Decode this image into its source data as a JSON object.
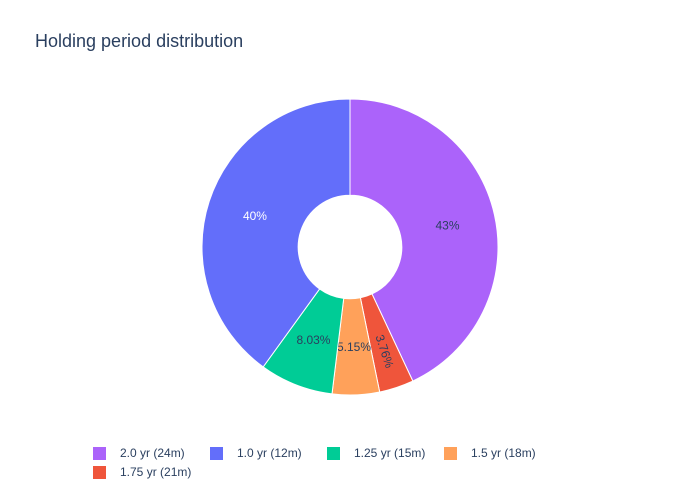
{
  "chart_data": {
    "type": "pie",
    "title": "Holding period distribution",
    "hole": 0.35,
    "legend_position": "bottom",
    "slices": [
      {
        "label": "2.0 yr (24m)",
        "value": 43.0,
        "text": "43%",
        "color": "#ab63fa"
      },
      {
        "label": "1.75 yr (21m)",
        "value": 3.76,
        "text": "3.76%",
        "color": "#ef553b"
      },
      {
        "label": "1.5 yr (18m)",
        "value": 5.15,
        "text": "5.15%",
        "color": "#ffa15a"
      },
      {
        "label": "1.25 yr (15m)",
        "value": 8.03,
        "text": "8.03%",
        "color": "#00cc96"
      },
      {
        "label": "1.0 yr (12m)",
        "value": 40.0,
        "text": "40%",
        "color": "#636efa"
      }
    ],
    "legend_order": [
      "2.0 yr (24m)",
      "1.0 yr (12m)",
      "1.25 yr (15m)",
      "1.5 yr (18m)",
      "1.75 yr (21m)"
    ]
  }
}
